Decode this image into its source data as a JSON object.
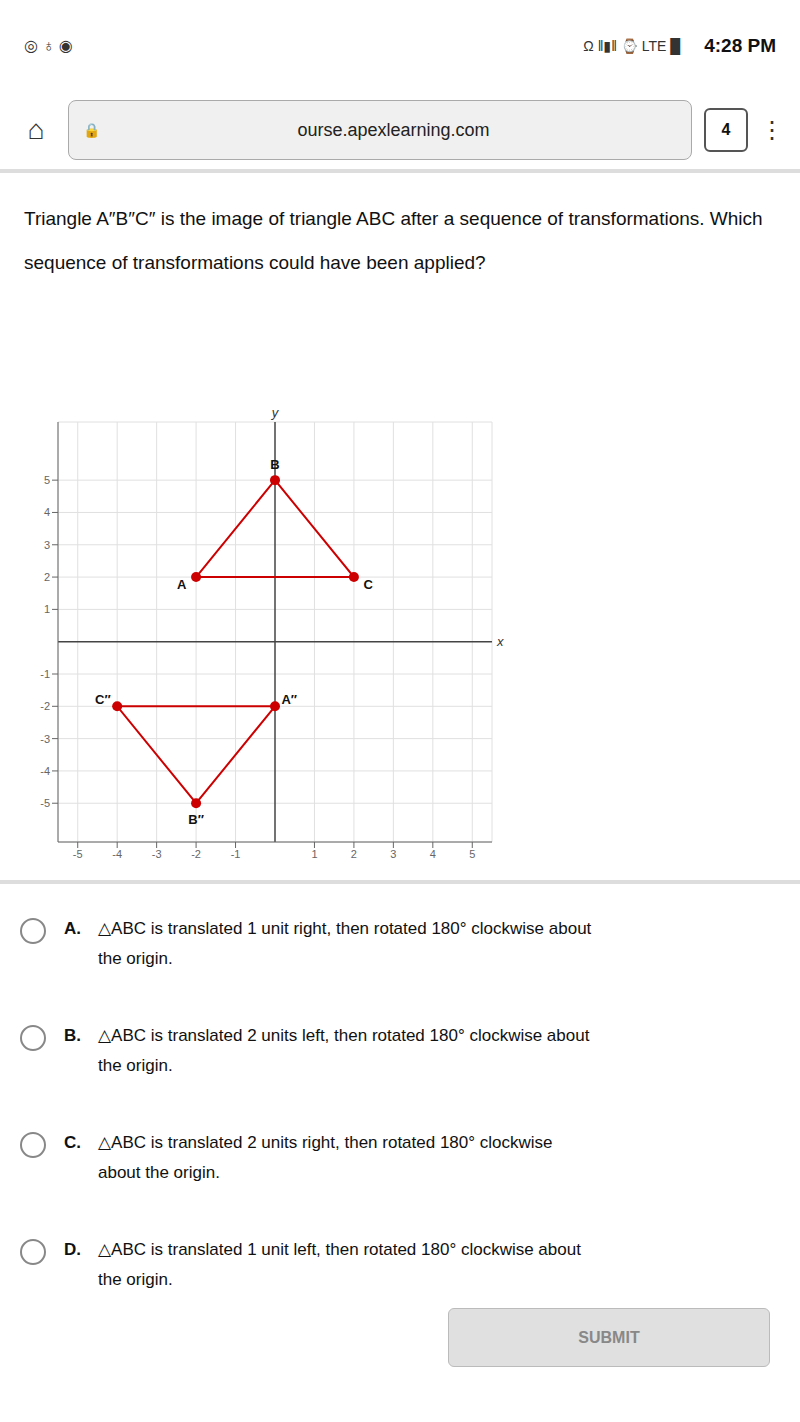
{
  "page": {
    "status_bar": {
      "icons_left": "◎  ♁  ◉",
      "icons_right": "Ω  ‖▮‖  ⌚  LTE  █",
      "time": "4:28 PM"
    },
    "url_bar": {
      "home": "⌂",
      "lock": "🔒",
      "url": "ourse.apexlearning.com",
      "tab": "4",
      "menu": "⋮"
    },
    "question": "Triangle A″B″C″ is the image of triangle ABC after a sequence of transformations. Which sequence of transformations could have been applied?",
    "options": [
      {
        "letter": "A.",
        "lines": [
          "△ABC is translated 1 unit right, then rotated 180° clockwise about",
          "the origin."
        ]
      },
      {
        "letter": "B.",
        "lines": [
          "△ABC is translated 2 units left, then rotated 180° clockwise about",
          "the origin."
        ]
      },
      {
        "letter": "C.",
        "lines": [
          "△ABC is translated 2 units right, then rotated 180° clockwise",
          "about the origin."
        ]
      },
      {
        "letter": "D.",
        "lines": [
          "△ABC is translated 1 unit left, then rotated 180° clockwise about",
          "the origin."
        ]
      }
    ],
    "button": "SUBMIT"
  },
  "chart_data": {
    "type": "scatter",
    "x_label": "x",
    "y_label": "y",
    "xlim": [
      -5.5,
      5.5
    ],
    "ylim": [
      -6.2,
      6.8
    ],
    "xticks": [
      -5,
      -4,
      -3,
      -2,
      -1,
      1,
      2,
      3,
      4,
      5
    ],
    "yticks": [
      -5,
      -4,
      -3,
      -2,
      -1,
      1,
      2,
      3,
      4,
      5
    ],
    "grid": true,
    "series": [
      {
        "color": "#cc0000",
        "marker": "circle",
        "line_style": "solid",
        "x": [
          -2,
          0,
          2
        ],
        "values": [
          2,
          5,
          2
        ],
        "labels": [
          "A",
          "B",
          "C"
        ]
      },
      {
        "color": "#cc0000",
        "marker": "circle",
        "line_style": "solid",
        "x": [
          0,
          -2,
          -4
        ],
        "values": [
          -2,
          -5,
          -2
        ],
        "labels": [
          "A″",
          "B″",
          "C″"
        ]
      }
    ]
  }
}
